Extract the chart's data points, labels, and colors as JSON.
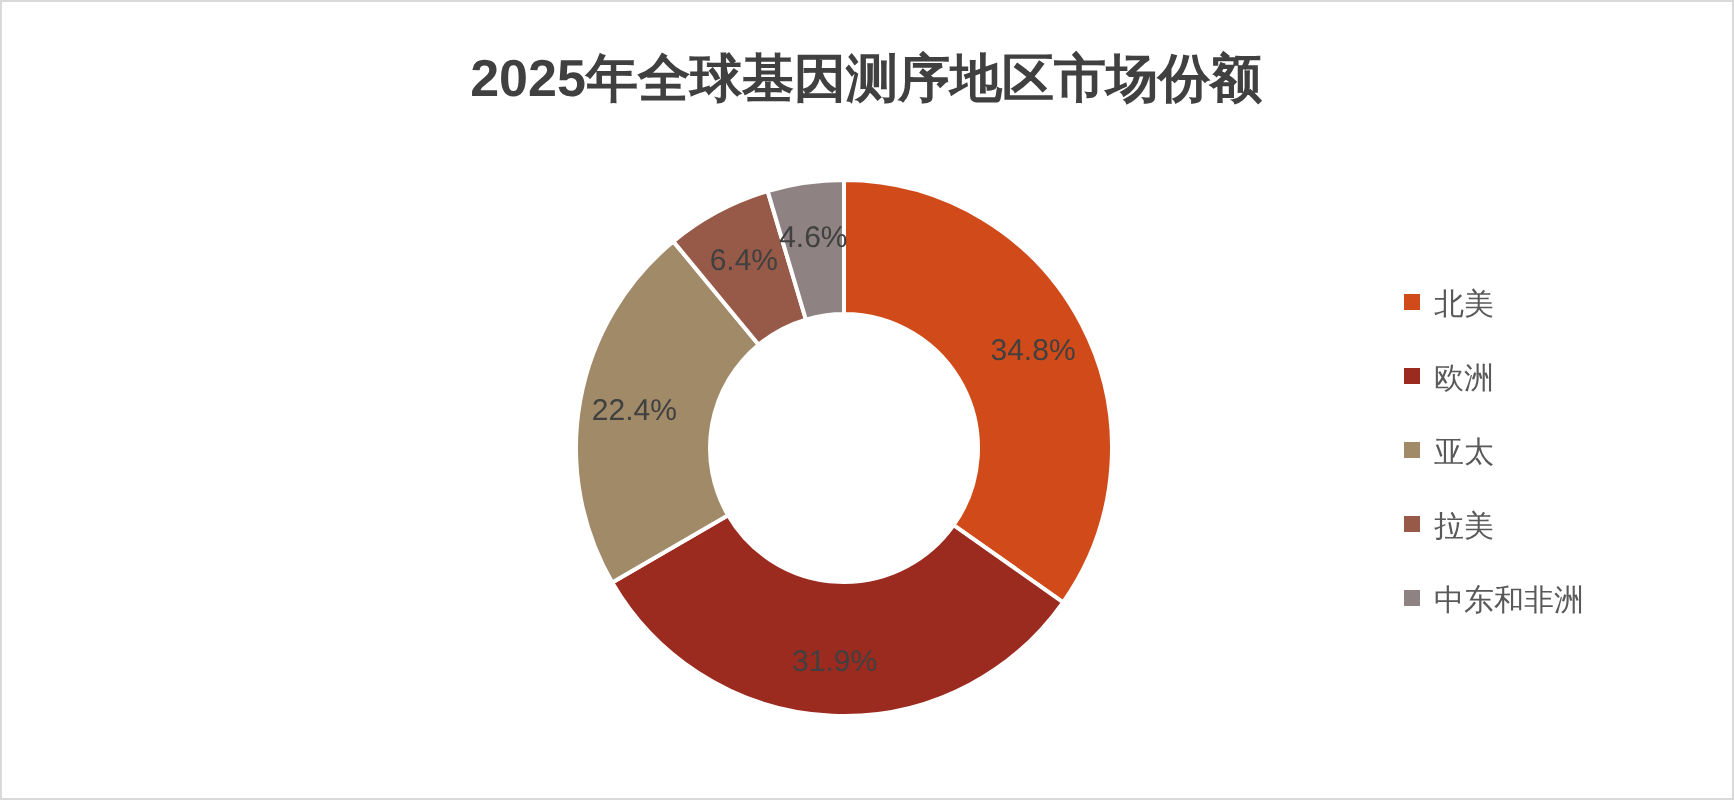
{
  "chart_data": {
    "type": "donut",
    "title": "2025年全球基因测序地区市场份额",
    "categories": [
      "北美",
      "欧洲",
      "亚太",
      "拉美",
      "中东和非洲"
    ],
    "values": [
      34.8,
      31.9,
      22.4,
      6.4,
      4.6
    ],
    "colors": [
      "#d14b1a",
      "#9b2a1f",
      "#a08a68",
      "#985a48",
      "#8e8282"
    ],
    "value_labels": [
      "34.8%",
      "31.9%",
      "22.4%",
      "6.4%",
      "4.6%"
    ],
    "legend": "right"
  }
}
